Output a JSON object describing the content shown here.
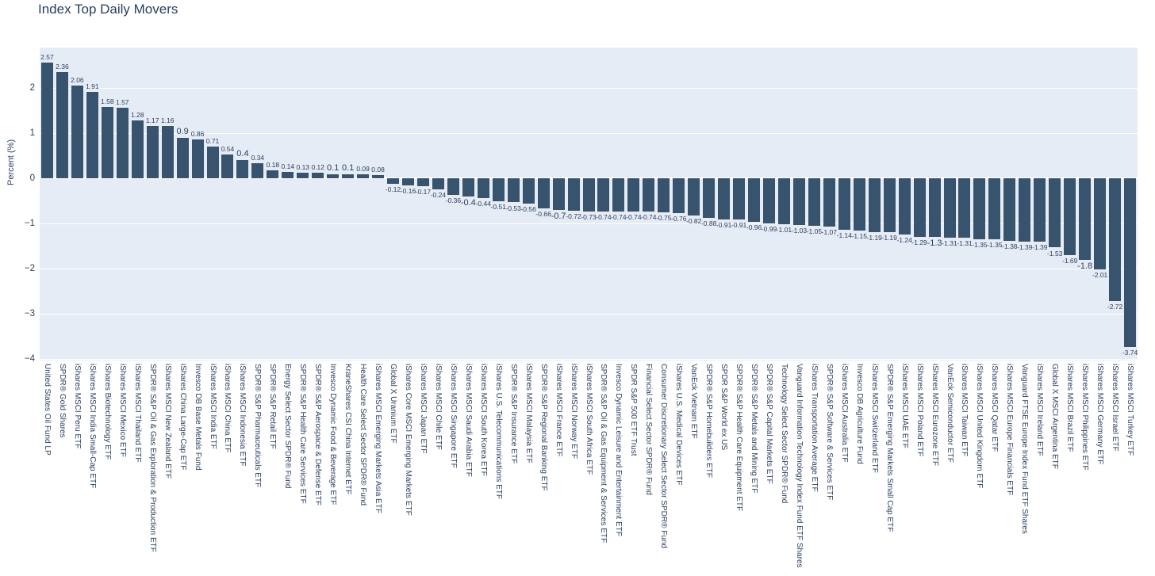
{
  "title": "Index Top Daily Movers",
  "chart_data": {
    "type": "bar",
    "title": "Index Top Daily Movers",
    "xlabel": "",
    "ylabel": "Percent (%)",
    "yticks": [
      2,
      1,
      0,
      -1,
      -2,
      -3,
      -4
    ],
    "ylim": [
      -4.03,
      2.9
    ],
    "grid": true,
    "legend": false,
    "bar_color": "#38536e",
    "plot_bg": "#e6ecf5",
    "gridline_color": "#ffffff",
    "text_color": "#2a3f5f",
    "categories": [
      "United States Oil Fund LP",
      "SPDR® Gold Shares",
      "iShares MSCI Peru ETF",
      "iShares MSCI India Small-Cap ETF",
      "iShares Biotechnology ETF",
      "iShares MSCI Mexico ETF",
      "iShares MSCI Thailand ETF",
      "SPDR® S&P Oil & Gas Exploration & Production ETF",
      "iShares MSCI New Zealand ETF",
      "iShares China Large-Cap ETF",
      "Invesco DB Base Metals Fund",
      "iShares MSCI India ETF",
      "iShares MSCI China ETF",
      "iShares MSCI Indonesia ETF",
      "SPDR® S&P Pharmaceuticals ETF",
      "SPDR® S&P Retail ETF",
      "Energy Select Sector SPDR® Fund",
      "SPDR® S&P Health Care Services ETF",
      "SPDR® S&P Aerospace & Defense ETF",
      "Invesco Dynamic Food & Beverage ETF",
      "KraneShares CSI China Internet ETF",
      "Health Care Select Sector SPDR® Fund",
      "iShares MSCI Emerging Markets Asia ETF",
      "Global X Uranium ETF",
      "iShares Core MSCI Emerging Markets ETF",
      "iShares MSCI Japan ETF",
      "iShares MSCI Chile ETF",
      "iShares MSCI Singapore ETF",
      "iShares MSCI Saudi Arabia ETF",
      "iShares MSCI South Korea ETF",
      "iShares U.S. Telecommunications ETF",
      "SPDR® S&P Insurance ETF",
      "iShares MSCI Malaysia ETF",
      "SPDR® S&P Regional Banking ETF",
      "iShares MSCI France ETF",
      "iShares MSCI Norway ETF",
      "iShares MSCI South Africa ETF",
      "SPDR® S&P Oil & Gas Equipment & Services ETF",
      "Invesco Dynamic Leisure and Entertainment ETF",
      "SPDR S&P 500 ETF Trust",
      "Financial Select Sector SPDR® Fund",
      "Consumer Discretionary Select Sector SPDR® Fund",
      "iShares U.S. Medical Devices ETF",
      "VanEck Vietnam ETF",
      "SPDR® S&P Homebuilders ETF",
      "SPDR S&P World ex US",
      "SPDR® S&P Health Care Equipment ETF",
      "SPDR® S&P Metals and Mining ETF",
      "SPDR® S&P Capital Markets ETF",
      "Technology Select Sector SPDR® Fund",
      "Vanguard Information Technology Index Fund ETF Shares",
      "iShares Transportation Average ETF",
      "SPDR® S&P Software & Services ETF",
      "iShares MSCI Australia ETF",
      "Invesco DB Agriculture Fund",
      "iShares MSCI Switzerland ETF",
      "SPDR® S&P Emerging Markets Small Cap ETF",
      "iShares MSCI UAE ETF",
      "iShares MSCI Poland ETF",
      "iShares MSCI Eurozone ETF",
      "VanEck Semiconductor ETF",
      "iShares MSCI Taiwan ETF",
      "iShares MSCI United Kingdom ETF",
      "iShares MSCI Qatar ETF",
      "iShares MSCI Europe Financials ETF",
      "Vanguard FTSE Europe Index Fund ETF Shares",
      "iShares MSCI Ireland ETF",
      "Global X MSCI Argentina ETF",
      "iShares MSCI Brazil ETF",
      "iShares MSCI Philippines ETF",
      "iShares MSCI Germany ETF",
      "iShares MSCI Israel ETF",
      "iShares MSCI Turkey ETF"
    ],
    "values": [
      2.57,
      2.36,
      2.06,
      1.91,
      1.58,
      1.57,
      1.28,
      1.17,
      1.16,
      0.9,
      0.86,
      0.71,
      0.54,
      0.4,
      0.34,
      0.18,
      0.14,
      0.13,
      0.12,
      0.1,
      0.1,
      0.09,
      0.08,
      -0.12,
      -0.16,
      -0.17,
      -0.24,
      -0.36,
      -0.4,
      -0.44,
      -0.51,
      -0.53,
      -0.56,
      -0.66,
      -0.7,
      -0.72,
      -0.73,
      -0.74,
      -0.74,
      -0.74,
      -0.74,
      -0.75,
      -0.76,
      -0.82,
      -0.88,
      -0.91,
      -0.91,
      -0.96,
      -0.99,
      -1.01,
      -1.03,
      -1.05,
      -1.07,
      -1.14,
      -1.15,
      -1.19,
      -1.19,
      -1.24,
      -1.29,
      -1.3,
      -1.31,
      -1.31,
      -1.35,
      -1.35,
      -1.38,
      -1.39,
      -1.39,
      -1.53,
      -1.69,
      -1.8,
      -2.01,
      -2.72,
      -3.74
    ]
  }
}
